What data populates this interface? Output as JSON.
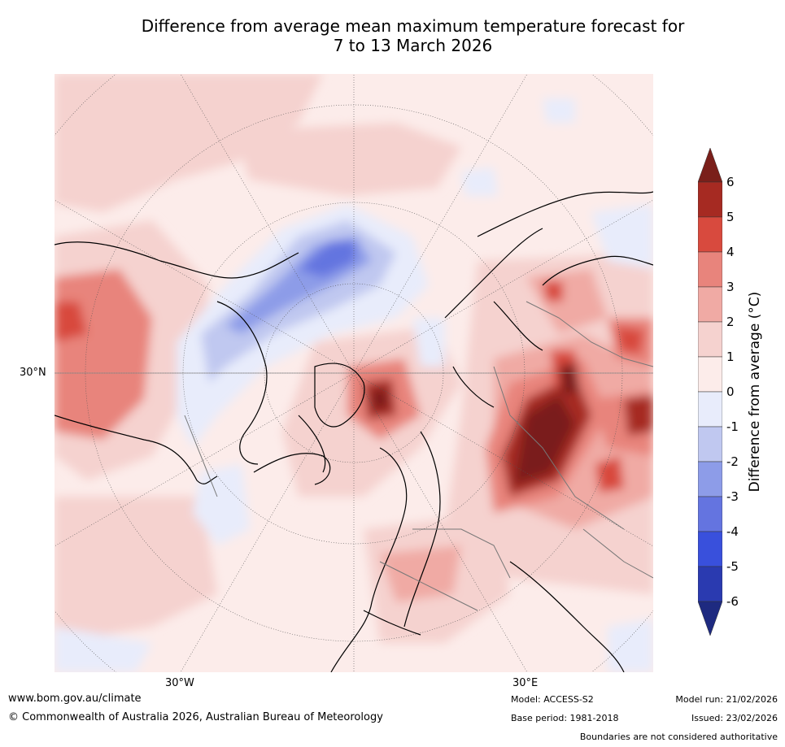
{
  "title": {
    "line1": "Difference from average mean maximum temperature forecast for",
    "line2": "7 to 13 March 2026"
  },
  "map": {
    "projection": "north-polar-stereographic",
    "lat_labels": [
      "30°N"
    ],
    "lon_labels": [
      "30°W",
      "30°E"
    ]
  },
  "colorbar": {
    "label": "Difference from average (°C)",
    "ticks": [
      "6",
      "5",
      "4",
      "3",
      "2",
      "1",
      "0",
      "-1",
      "-2",
      "-3",
      "-4",
      "-5",
      "-6"
    ],
    "bins": [
      {
        "range": ">6",
        "color": "#7a1f1a"
      },
      {
        "range": "5 to 6",
        "color": "#a62a22"
      },
      {
        "range": "4 to 5",
        "color": "#d84a3e"
      },
      {
        "range": "3 to 4",
        "color": "#e8847c"
      },
      {
        "range": "2 to 3",
        "color": "#f0aaa4"
      },
      {
        "range": "1 to 2",
        "color": "#f5d2cf"
      },
      {
        "range": "0 to 1",
        "color": "#fcecea"
      },
      {
        "range": "-1 to 0",
        "color": "#e8ecfb"
      },
      {
        "range": "-2 to -1",
        "color": "#c0c8f0"
      },
      {
        "range": "-3 to -2",
        "color": "#8d9ce8"
      },
      {
        "range": "-4 to -3",
        "color": "#6474e0"
      },
      {
        "range": "-5 to -4",
        "color": "#3950dc"
      },
      {
        "range": "-6 to -5",
        "color": "#2a3ab0"
      },
      {
        "range": "<-6",
        "color": "#1e2a80"
      }
    ]
  },
  "footer": {
    "website": "www.bom.gov.au/climate",
    "copyright": "© Commonwealth of Australia 2026, Australian Bureau of Meteorology",
    "model": "Model: ACCESS-S2",
    "base_period": "Base period: 1981-2018",
    "model_run": "Model run: 21/02/2026",
    "issued": "Issued: 23/02/2026",
    "boundaries_note": "Boundaries are not considered authoritative"
  }
}
